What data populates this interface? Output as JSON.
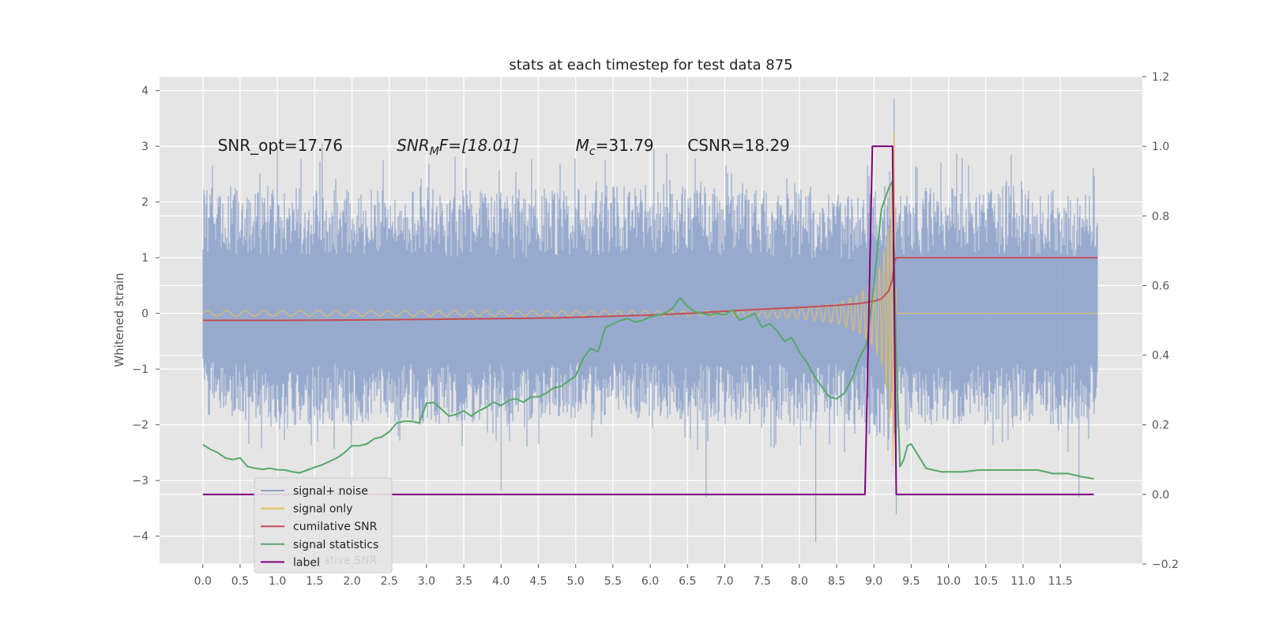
{
  "chart_data": {
    "type": "line",
    "title": "stats at each timestep for test data 875",
    "ylabel": "Whitened strain",
    "xlabel": "",
    "grid": true,
    "xlim": [
      -0.58,
      12.6
    ],
    "ylim": [
      -4.5,
      4.25
    ],
    "y2lim": [
      -0.2,
      1.2
    ],
    "x_ticks": [
      "0.0",
      "0.5",
      "1.0",
      "1.5",
      "2.0",
      "2.5",
      "3.0",
      "3.5",
      "4.0",
      "4.5",
      "5.0",
      "5.5",
      "6.0",
      "6.5",
      "7.0",
      "7.5",
      "8.0",
      "8.5",
      "9.0",
      "9.5",
      "10.0",
      "10.5",
      "11.0",
      "11.5"
    ],
    "y_ticks": [
      "4",
      "3",
      "2",
      "1",
      "0",
      "−1",
      "−2",
      "−3",
      "−4"
    ],
    "y2_ticks": [
      "1.2",
      "1.0",
      "0.8",
      "0.6",
      "0.4",
      "0.2",
      "0.0",
      "−0.2"
    ],
    "annotations": [
      {
        "text": "SNR_opt=17.76",
        "x": 0.2,
        "y": 3.0
      },
      {
        "base": "SNR",
        "sub": "M",
        "rest": "F=[18.01]",
        "x": 2.6,
        "y": 3.0
      },
      {
        "base": "M",
        "sub": "c",
        "rest": "=31.79",
        "x": 5.0,
        "y": 3.0
      },
      {
        "text": "CSNR=18.29",
        "x": 6.5,
        "y": 3.0
      }
    ],
    "legend": {
      "position": "lower-left",
      "entries": [
        {
          "label": "signal+ noise",
          "color": "#8ea3cb"
        },
        {
          "label": "signal only",
          "color": "#ecc05a"
        },
        {
          "label": "cumilative SNR",
          "color": "#c44e52"
        },
        {
          "label": "signal statistics",
          "color": "#55a868"
        },
        {
          "label": "label",
          "color": "#800080"
        }
      ],
      "ghost_text": "cumilative SNR"
    },
    "series": [
      {
        "name": "signal+ noise",
        "axis": "left",
        "color": "#8ea3cb",
        "style": "noise",
        "x_range": [
          0.0,
          12.0
        ],
        "upper_envelope": [
          [
            0.0,
            2.3
          ],
          [
            1.0,
            2.3
          ],
          [
            2.0,
            2.2
          ],
          [
            3.0,
            2.3
          ],
          [
            4.0,
            2.2
          ],
          [
            5.0,
            2.3
          ],
          [
            6.0,
            2.3
          ],
          [
            7.0,
            2.3
          ],
          [
            8.0,
            2.2
          ],
          [
            8.8,
            2.1
          ],
          [
            9.2,
            2.6
          ],
          [
            9.3,
            2.2
          ],
          [
            10.0,
            2.3
          ],
          [
            11.0,
            2.3
          ],
          [
            12.0,
            2.1
          ]
        ],
        "lower_envelope": [
          [
            0.0,
            -1.8
          ],
          [
            1.0,
            -2.0
          ],
          [
            2.0,
            -2.0
          ],
          [
            3.0,
            -2.0
          ],
          [
            4.0,
            -2.0
          ],
          [
            5.0,
            -1.9
          ],
          [
            6.0,
            -1.9
          ],
          [
            7.0,
            -2.0
          ],
          [
            8.0,
            -2.0
          ],
          [
            8.8,
            -2.0
          ],
          [
            9.2,
            -2.6
          ],
          [
            9.3,
            -2.1
          ],
          [
            10.0,
            -2.0
          ],
          [
            11.0,
            -2.0
          ],
          [
            12.0,
            -2.0
          ]
        ],
        "spikes": [
          [
            1.0,
            3.0
          ],
          [
            1.6,
            3.05
          ],
          [
            6.05,
            2.95
          ],
          [
            9.27,
            3.85
          ],
          [
            4.0,
            -3.2
          ],
          [
            6.0,
            -0.9
          ],
          [
            6.75,
            -3.3
          ],
          [
            8.22,
            -4.1
          ],
          [
            9.3,
            -3.6
          ],
          [
            11.75,
            -3.3
          ]
        ]
      },
      {
        "name": "signal only",
        "axis": "left",
        "color": "#ecc05a",
        "style": "chirp",
        "amplitude": [
          [
            7.0,
            0.05
          ],
          [
            8.0,
            0.1
          ],
          [
            8.5,
            0.18
          ],
          [
            8.8,
            0.35
          ],
          [
            9.0,
            0.6
          ],
          [
            9.1,
            0.9
          ],
          [
            9.2,
            1.6
          ],
          [
            9.25,
            2.6
          ],
          [
            9.28,
            3.5
          ],
          [
            9.3,
            0.0
          ],
          [
            12.0,
            0.0
          ]
        ]
      },
      {
        "name": "cumilative SNR",
        "axis": "right",
        "color": "#c44e52",
        "x": [
          0.0,
          1.0,
          2.0,
          3.0,
          4.0,
          4.75,
          5.5,
          6.0,
          6.5,
          7.0,
          7.5,
          8.0,
          8.5,
          8.8,
          9.0,
          9.1,
          9.2,
          9.25,
          9.28,
          9.3,
          12.0
        ],
        "values": [
          0.5,
          0.5,
          0.501,
          0.503,
          0.505,
          0.507,
          0.512,
          0.515,
          0.52,
          0.526,
          0.532,
          0.537,
          0.543,
          0.548,
          0.555,
          0.562,
          0.585,
          0.62,
          0.67,
          0.68,
          0.68
        ]
      },
      {
        "name": "signal statistics",
        "axis": "right",
        "color": "#55a868",
        "x": [
          0.0,
          0.1,
          0.2,
          0.3,
          0.4,
          0.5,
          0.6,
          0.7,
          0.8,
          0.9,
          1.0,
          1.1,
          1.2,
          1.3,
          1.4,
          1.5,
          1.6,
          1.7,
          1.8,
          1.9,
          2.0,
          2.1,
          2.2,
          2.3,
          2.4,
          2.5,
          2.6,
          2.7,
          2.8,
          2.9,
          3.0,
          3.1,
          3.2,
          3.3,
          3.4,
          3.5,
          3.6,
          3.7,
          3.8,
          3.9,
          4.0,
          4.1,
          4.2,
          4.3,
          4.4,
          4.5,
          4.6,
          4.7,
          4.8,
          4.9,
          5.0,
          5.1,
          5.2,
          5.3,
          5.4,
          5.5,
          5.6,
          5.7,
          5.8,
          5.9,
          6.0,
          6.1,
          6.2,
          6.3,
          6.4,
          6.5,
          6.6,
          6.7,
          6.8,
          6.9,
          7.0,
          7.1,
          7.2,
          7.3,
          7.4,
          7.5,
          7.6,
          7.7,
          7.8,
          7.9,
          8.0,
          8.1,
          8.2,
          8.3,
          8.4,
          8.5,
          8.6,
          8.7,
          8.8,
          8.9,
          9.0,
          9.1,
          9.15,
          9.2,
          9.25,
          9.3,
          9.35,
          9.4,
          9.45,
          9.5,
          9.6,
          9.7,
          9.8,
          9.9,
          10.0,
          10.2,
          10.4,
          10.6,
          10.8,
          11.0,
          11.2,
          11.4,
          11.6,
          11.8,
          11.95
        ],
        "values": [
          0.143,
          0.13,
          0.12,
          0.105,
          0.1,
          0.105,
          0.08,
          0.075,
          0.072,
          0.075,
          0.071,
          0.07,
          0.065,
          0.062,
          0.07,
          0.078,
          0.085,
          0.095,
          0.105,
          0.12,
          0.14,
          0.14,
          0.145,
          0.16,
          0.165,
          0.18,
          0.205,
          0.21,
          0.21,
          0.205,
          0.262,
          0.264,
          0.245,
          0.225,
          0.23,
          0.24,
          0.225,
          0.24,
          0.25,
          0.265,
          0.255,
          0.27,
          0.275,
          0.265,
          0.28,
          0.28,
          0.29,
          0.305,
          0.31,
          0.325,
          0.34,
          0.39,
          0.42,
          0.41,
          0.48,
          0.49,
          0.5,
          0.505,
          0.495,
          0.5,
          0.51,
          0.515,
          0.52,
          0.535,
          0.565,
          0.54,
          0.525,
          0.52,
          0.515,
          0.52,
          0.515,
          0.53,
          0.5,
          0.51,
          0.52,
          0.48,
          0.49,
          0.47,
          0.44,
          0.45,
          0.41,
          0.38,
          0.34,
          0.31,
          0.28,
          0.275,
          0.29,
          0.33,
          0.39,
          0.43,
          0.6,
          0.82,
          0.85,
          0.88,
          0.9,
          0.4,
          0.08,
          0.1,
          0.14,
          0.145,
          0.11,
          0.075,
          0.07,
          0.065,
          0.065,
          0.065,
          0.07,
          0.07,
          0.07,
          0.07,
          0.07,
          0.06,
          0.06,
          0.05,
          0.045
        ]
      },
      {
        "name": "label",
        "axis": "right",
        "color": "#800080",
        "x": [
          0.0,
          8.88,
          8.98,
          9.25,
          9.3,
          11.95
        ],
        "values": [
          0.0,
          0.0,
          1.0,
          1.0,
          0.0,
          0.0
        ]
      }
    ]
  }
}
